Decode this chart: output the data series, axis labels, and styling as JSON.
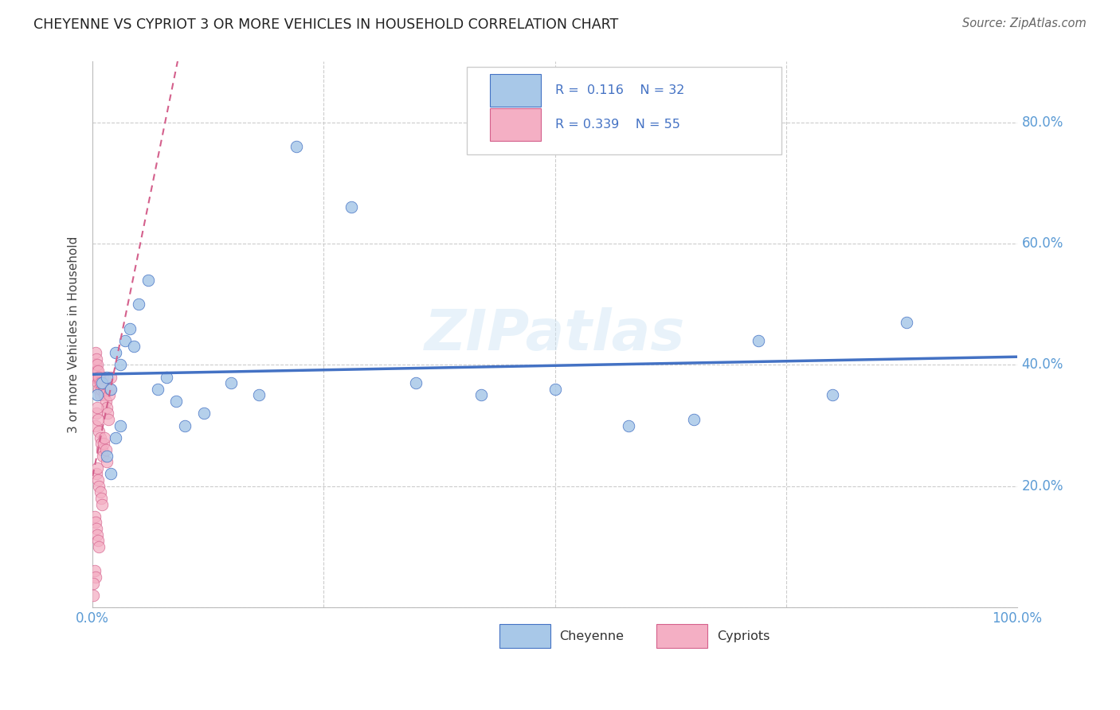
{
  "title": "CHEYENNE VS CYPRIOT 3 OR MORE VEHICLES IN HOUSEHOLD CORRELATION CHART",
  "source": "Source: ZipAtlas.com",
  "ylabel_text": "3 or more Vehicles in Household",
  "xmin": 0.0,
  "xmax": 1.0,
  "ymin": 0.0,
  "ymax": 0.9,
  "xticks": [
    0.0,
    0.25,
    0.5,
    0.75,
    1.0
  ],
  "xtick_labels": [
    "0.0%",
    "",
    "",
    "",
    "100.0%"
  ],
  "yticks": [
    0.0,
    0.2,
    0.4,
    0.6,
    0.8
  ],
  "ytick_labels": [
    "",
    "20.0%",
    "40.0%",
    "60.0%",
    "80.0%"
  ],
  "cheyenne_R": "0.116",
  "cheyenne_N": "32",
  "cypriot_R": "0.339",
  "cypriot_N": "55",
  "cheyenne_color": "#a8c8e8",
  "cypriot_color": "#f4afc4",
  "cheyenne_line_color": "#4472c4",
  "cypriot_line_color": "#d4608c",
  "watermark": "ZIPatlas",
  "cheyenne_x": [
    0.005,
    0.01,
    0.015,
    0.02,
    0.025,
    0.03,
    0.035,
    0.04,
    0.045,
    0.05,
    0.06,
    0.07,
    0.08,
    0.09,
    0.1,
    0.12,
    0.15,
    0.18,
    0.22,
    0.28,
    0.35,
    0.42,
    0.5,
    0.58,
    0.65,
    0.72,
    0.8,
    0.88,
    0.025,
    0.015,
    0.03,
    0.02
  ],
  "cheyenne_y": [
    0.35,
    0.37,
    0.38,
    0.36,
    0.42,
    0.4,
    0.44,
    0.46,
    0.43,
    0.5,
    0.54,
    0.36,
    0.38,
    0.34,
    0.3,
    0.32,
    0.37,
    0.35,
    0.76,
    0.66,
    0.37,
    0.35,
    0.36,
    0.3,
    0.31,
    0.44,
    0.35,
    0.47,
    0.28,
    0.25,
    0.3,
    0.22
  ],
  "cypriot_x": [
    0.002,
    0.003,
    0.004,
    0.005,
    0.006,
    0.007,
    0.008,
    0.009,
    0.01,
    0.011,
    0.012,
    0.013,
    0.014,
    0.015,
    0.016,
    0.017,
    0.018,
    0.019,
    0.02,
    0.003,
    0.004,
    0.005,
    0.006,
    0.007,
    0.008,
    0.009,
    0.01,
    0.011,
    0.012,
    0.013,
    0.014,
    0.015,
    0.004,
    0.005,
    0.006,
    0.007,
    0.008,
    0.009,
    0.01,
    0.003,
    0.004,
    0.005,
    0.006,
    0.007,
    0.008,
    0.002,
    0.003,
    0.004,
    0.005,
    0.006,
    0.007,
    0.002,
    0.003,
    0.001,
    0.001
  ],
  "cypriot_y": [
    0.38,
    0.4,
    0.39,
    0.38,
    0.37,
    0.36,
    0.35,
    0.36,
    0.37,
    0.38,
    0.36,
    0.35,
    0.34,
    0.33,
    0.32,
    0.31,
    0.35,
    0.36,
    0.38,
    0.3,
    0.32,
    0.33,
    0.31,
    0.29,
    0.28,
    0.27,
    0.26,
    0.25,
    0.27,
    0.28,
    0.26,
    0.24,
    0.22,
    0.23,
    0.21,
    0.2,
    0.19,
    0.18,
    0.17,
    0.42,
    0.41,
    0.4,
    0.39,
    0.38,
    0.37,
    0.15,
    0.14,
    0.13,
    0.12,
    0.11,
    0.1,
    0.06,
    0.05,
    0.04,
    0.02
  ]
}
